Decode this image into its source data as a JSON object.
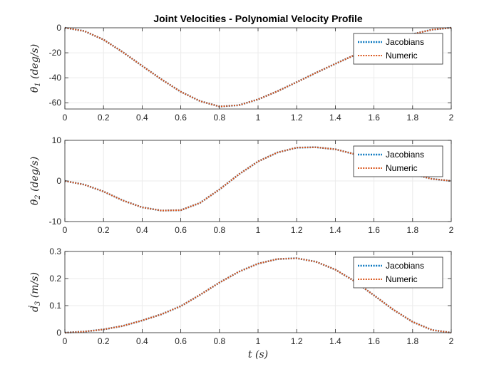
{
  "chart_data": [
    {
      "type": "line",
      "title": "Joint Velocities - Polynomial Velocity Profile",
      "ylabel": {
        "main": "θ̇",
        "sub": "1",
        "rest": " (deg/s)"
      },
      "xlabel": "",
      "xlim": [
        0,
        2
      ],
      "ylim": [
        -65,
        0
      ],
      "xticks": [
        "0",
        "0.2",
        "0.4",
        "0.6",
        "0.8",
        "1",
        "1.2",
        "1.4",
        "1.6",
        "1.8",
        "2"
      ],
      "yticks": [
        {
          "value": 0,
          "label": "0"
        },
        {
          "value": -20,
          "label": "-20"
        },
        {
          "value": -40,
          "label": "-40"
        },
        {
          "value": -60,
          "label": "-60"
        }
      ],
      "grid": true,
      "legend": "top-right",
      "x": [
        0,
        0.1,
        0.2,
        0.3,
        0.4,
        0.5,
        0.6,
        0.7,
        0.8,
        0.9,
        1.0,
        1.1,
        1.2,
        1.3,
        1.4,
        1.5,
        1.6,
        1.7,
        1.8,
        1.9,
        2.0
      ],
      "series": [
        {
          "name": "Jacobians",
          "values": [
            0,
            -2.6,
            -9.5,
            -19.5,
            -30.5,
            -41.3,
            -51.2,
            -58.7,
            -63,
            -62,
            -57.3,
            -50.8,
            -43.5,
            -36,
            -28.8,
            -21.8,
            -15.4,
            -9.8,
            -5.1,
            -1.5,
            0
          ]
        },
        {
          "name": "Numeric",
          "values": [
            0,
            -2.6,
            -9.5,
            -19.5,
            -30.5,
            -41.3,
            -51.2,
            -58.7,
            -63,
            -62,
            -57.3,
            -50.8,
            -43.5,
            -36,
            -28.8,
            -21.8,
            -15.4,
            -9.8,
            -5.1,
            -1.5,
            0
          ]
        }
      ]
    },
    {
      "type": "line",
      "title": "",
      "ylabel": {
        "main": "θ̇",
        "sub": "2",
        "rest": " (deg/s)"
      },
      "xlabel": "",
      "xlim": [
        0,
        2
      ],
      "ylim": [
        -10,
        10
      ],
      "xticks": [
        "0",
        "0.2",
        "0.4",
        "0.6",
        "0.8",
        "1",
        "1.2",
        "1.4",
        "1.6",
        "1.8",
        "2"
      ],
      "yticks": [
        {
          "value": 10,
          "label": "10"
        },
        {
          "value": 0,
          "label": "0"
        },
        {
          "value": -10,
          "label": "-10"
        }
      ],
      "grid": true,
      "legend": "top-right",
      "x": [
        0,
        0.1,
        0.2,
        0.3,
        0.4,
        0.5,
        0.6,
        0.7,
        0.8,
        0.9,
        1.0,
        1.1,
        1.2,
        1.3,
        1.4,
        1.5,
        1.6,
        1.7,
        1.8,
        1.9,
        2.0
      ],
      "series": [
        {
          "name": "Jacobians",
          "values": [
            0,
            -0.9,
            -2.6,
            -4.8,
            -6.5,
            -7.3,
            -7.2,
            -5.4,
            -2.1,
            1.6,
            4.8,
            7.0,
            8.2,
            8.3,
            7.8,
            6.6,
            4.9,
            3.2,
            1.7,
            0.5,
            0
          ]
        },
        {
          "name": "Numeric",
          "values": [
            0,
            -0.9,
            -2.6,
            -4.8,
            -6.5,
            -7.3,
            -7.2,
            -5.4,
            -2.1,
            1.6,
            4.8,
            7.0,
            8.2,
            8.3,
            7.8,
            6.6,
            4.9,
            3.2,
            1.7,
            0.5,
            0
          ]
        }
      ]
    },
    {
      "type": "line",
      "title": "",
      "ylabel": {
        "main": "ḋ",
        "sub": "3",
        "rest": " (m/s)"
      },
      "xlabel": "t (s)",
      "xlim": [
        0,
        2
      ],
      "ylim": [
        0,
        0.3
      ],
      "xticks": [
        "0",
        "0.2",
        "0.4",
        "0.6",
        "0.8",
        "1",
        "1.2",
        "1.4",
        "1.6",
        "1.8",
        "2"
      ],
      "yticks": [
        {
          "value": 0.3,
          "label": "0.3"
        },
        {
          "value": 0.2,
          "label": "0.2"
        },
        {
          "value": 0.1,
          "label": "0.1"
        },
        {
          "value": 0,
          "label": "0"
        }
      ],
      "grid": true,
      "legend": "top-right",
      "x": [
        0,
        0.1,
        0.2,
        0.3,
        0.4,
        0.5,
        0.6,
        0.7,
        0.8,
        0.9,
        1.0,
        1.1,
        1.2,
        1.3,
        1.4,
        1.5,
        1.6,
        1.7,
        1.8,
        1.9,
        2.0
      ],
      "series": [
        {
          "name": "Jacobians",
          "values": [
            0,
            0.004,
            0.012,
            0.025,
            0.045,
            0.068,
            0.098,
            0.14,
            0.185,
            0.225,
            0.255,
            0.272,
            0.275,
            0.262,
            0.233,
            0.19,
            0.138,
            0.085,
            0.04,
            0.01,
            0
          ]
        },
        {
          "name": "Numeric",
          "values": [
            0,
            0.004,
            0.012,
            0.025,
            0.045,
            0.068,
            0.098,
            0.14,
            0.185,
            0.225,
            0.255,
            0.272,
            0.275,
            0.262,
            0.233,
            0.19,
            0.138,
            0.085,
            0.04,
            0.01,
            0
          ]
        }
      ]
    }
  ],
  "colors": {
    "jacobians": "#0072BD",
    "numeric": "#D95319",
    "axis": "#262626",
    "grid": "#ebebeb"
  }
}
